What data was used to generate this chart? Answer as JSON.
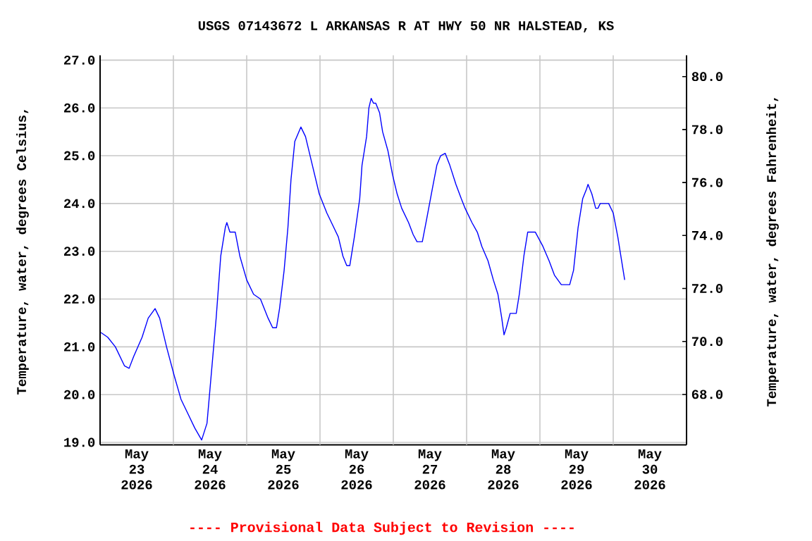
{
  "chart_data": {
    "type": "line",
    "title": "USGS 07143672 L ARKANSAS R AT HWY 50 NR HALSTEAD, KS",
    "ylabel": "Temperature, water, degrees Celsius,",
    "y2label": "Temperature, water, degrees Fahrenheit,",
    "annotations": [
      "---- Provisional Data Subject to Revision ----"
    ],
    "color": "#0000ff",
    "x": [
      "2026-05-23T00:15",
      "2026-05-23T02:30",
      "2026-05-23T05:00",
      "2026-05-23T08:00",
      "2026-05-23T09:30",
      "2026-05-23T11:00",
      "2026-05-23T13:45",
      "2026-05-23T15:45",
      "2026-05-23T18:00",
      "2026-05-23T19:30",
      "2026-05-23T21:45",
      "2026-05-24T00:15",
      "2026-05-24T02:30",
      "2026-05-24T04:45",
      "2026-05-24T07:00",
      "2026-05-24T09:15",
      "2026-05-24T11:00",
      "2026-05-24T12:30",
      "2026-05-24T14:00",
      "2026-05-24T15:30",
      "2026-05-24T17:00",
      "2026-05-24T17:30",
      "2026-05-24T18:30",
      "2026-05-24T20:15",
      "2026-05-24T21:45",
      "2026-05-25T00:00",
      "2026-05-25T02:15",
      "2026-05-25T04:30",
      "2026-05-25T07:00",
      "2026-05-25T08:30",
      "2026-05-25T09:45",
      "2026-05-25T10:45",
      "2026-05-25T12:15",
      "2026-05-25T13:30",
      "2026-05-25T14:30",
      "2026-05-25T15:45",
      "2026-05-25T17:45",
      "2026-05-25T19:15",
      "2026-05-25T21:30",
      "2026-05-25T23:45",
      "2026-05-26T02:15",
      "2026-05-26T04:30",
      "2026-05-26T06:00",
      "2026-05-26T07:30",
      "2026-05-26T08:45",
      "2026-05-26T09:45",
      "2026-05-26T11:15",
      "2026-05-26T13:00",
      "2026-05-26T13:45",
      "2026-05-26T15:15",
      "2026-05-26T16:00",
      "2026-05-26T16:45",
      "2026-05-26T17:30",
      "2026-05-26T18:15",
      "2026-05-26T19:30",
      "2026-05-26T20:30",
      "2026-05-26T22:15",
      "2026-05-26T23:45",
      "2026-05-27T01:15",
      "2026-05-27T02:45",
      "2026-05-27T05:00",
      "2026-05-27T06:30",
      "2026-05-27T07:45",
      "2026-05-27T09:30",
      "2026-05-27T11:00",
      "2026-05-27T12:45",
      "2026-05-27T14:15",
      "2026-05-27T15:30",
      "2026-05-27T17:00",
      "2026-05-27T18:30",
      "2026-05-27T20:30",
      "2026-05-27T22:15",
      "2026-05-27T23:30",
      "2026-05-28T01:45",
      "2026-05-28T03:30",
      "2026-05-28T05:00",
      "2026-05-28T07:00",
      "2026-05-28T08:45",
      "2026-05-28T10:15",
      "2026-05-28T11:30",
      "2026-05-28T12:15",
      "2026-05-28T13:00",
      "2026-05-28T14:15",
      "2026-05-28T16:15",
      "2026-05-28T17:15",
      "2026-05-28T18:45",
      "2026-05-28T20:00",
      "2026-05-28T22:30",
      "2026-05-29T01:00",
      "2026-05-29T03:00",
      "2026-05-29T04:45",
      "2026-05-29T07:00",
      "2026-05-29T09:45",
      "2026-05-29T11:00",
      "2026-05-29T12:30",
      "2026-05-29T14:00",
      "2026-05-29T15:15",
      "2026-05-29T15:45",
      "2026-05-29T17:00",
      "2026-05-29T18:15",
      "2026-05-29T19:00",
      "2026-05-29T19:45",
      "2026-05-29T22:30",
      "2026-05-30T00:00",
      "2026-05-30T01:30",
      "2026-05-30T03:00",
      "2026-05-30T03:45"
    ],
    "values": [
      21.3,
      21.2,
      21.0,
      20.6,
      20.55,
      20.8,
      21.2,
      21.6,
      21.8,
      21.6,
      21.0,
      20.4,
      19.9,
      19.6,
      19.3,
      19.05,
      19.4,
      20.5,
      21.6,
      22.9,
      23.5,
      23.6,
      23.4,
      23.4,
      22.9,
      22.4,
      22.1,
      22.0,
      21.6,
      21.4,
      21.4,
      21.8,
      22.6,
      23.5,
      24.5,
      25.3,
      25.6,
      25.4,
      24.8,
      24.2,
      23.8,
      23.5,
      23.3,
      22.9,
      22.7,
      22.7,
      23.3,
      24.1,
      24.8,
      25.4,
      26.0,
      26.2,
      26.1,
      26.1,
      25.9,
      25.5,
      25.1,
      24.6,
      24.2,
      23.9,
      23.6,
      23.35,
      23.2,
      23.2,
      23.7,
      24.3,
      24.8,
      25.0,
      25.05,
      24.8,
      24.4,
      24.1,
      23.9,
      23.6,
      23.4,
      23.1,
      22.8,
      22.4,
      22.1,
      21.6,
      21.25,
      21.4,
      21.7,
      21.7,
      22.1,
      22.9,
      23.4,
      23.4,
      23.1,
      22.8,
      22.5,
      22.3,
      22.3,
      22.6,
      23.5,
      24.1,
      24.3,
      24.4,
      24.2,
      23.9,
      23.9,
      24.0,
      24.0,
      23.8,
      23.3,
      22.7,
      22.4
    ],
    "xlim": [
      "2026-05-23T00:00",
      "2026-05-31T00:00"
    ],
    "xticks": [
      {
        "value": "2026-05-23T12:00",
        "label": "May 23 2026"
      },
      {
        "value": "2026-05-24T12:00",
        "label": "May 24 2026"
      },
      {
        "value": "2026-05-25T12:00",
        "label": "May 25 2026"
      },
      {
        "value": "2026-05-26T12:00",
        "label": "May 26 2026"
      },
      {
        "value": "2026-05-27T12:00",
        "label": "May 27 2026"
      },
      {
        "value": "2026-05-28T12:00",
        "label": "May 28 2026"
      },
      {
        "value": "2026-05-29T12:00",
        "label": "May 29 2026"
      },
      {
        "value": "2026-05-30T12:00",
        "label": "May 30 2026"
      },
      {
        "value": "2026-05-24T00:00",
        "label": null
      },
      {
        "value": "2026-05-25T00:00",
        "label": null
      },
      {
        "value": "2026-05-26T00:00",
        "label": null
      },
      {
        "value": "2026-05-27T00:00",
        "label": null
      },
      {
        "value": "2026-05-28T00:00",
        "label": null
      },
      {
        "value": "2026-05-29T00:00",
        "label": null
      },
      {
        "value": "2026-05-30T00:00",
        "label": null
      }
    ],
    "ylim": [
      18.95,
      27.1
    ],
    "yticks": [
      {
        "value": 19,
        "label": "19.0"
      },
      {
        "value": 20,
        "label": "20.0"
      },
      {
        "value": 21,
        "label": "21.0"
      },
      {
        "value": 22,
        "label": "22.0"
      },
      {
        "value": 23,
        "label": "23.0"
      },
      {
        "value": 24,
        "label": "24.0"
      },
      {
        "value": 25,
        "label": "25.0"
      },
      {
        "value": 26,
        "label": "26.0"
      },
      {
        "value": 27,
        "label": "27.0"
      }
    ],
    "y2lim": [
      66.1,
      80.8
    ],
    "y2ticks": [
      {
        "value": 68,
        "label": "68.0"
      },
      {
        "value": 70,
        "label": "70.0"
      },
      {
        "value": 72,
        "label": "72.0"
      },
      {
        "value": 74,
        "label": "74.0"
      },
      {
        "value": 76,
        "label": "76.0"
      },
      {
        "value": 78,
        "label": "78.0"
      },
      {
        "value": 80,
        "label": "80.0"
      }
    ],
    "grid": true
  }
}
